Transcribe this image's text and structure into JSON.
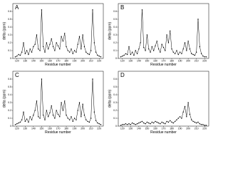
{
  "chart_data": [
    {
      "type": "line",
      "title": "A",
      "xlabel": "Residue number",
      "ylabel": "delta (ppm)",
      "color": "#000000",
      "x": [
        118,
        120,
        122,
        124,
        126,
        128,
        130,
        132,
        134,
        136,
        138,
        140,
        142,
        144,
        146,
        148,
        150,
        152,
        154,
        156,
        158,
        160,
        162,
        164,
        166,
        168,
        170,
        172,
        174,
        176,
        178,
        180,
        182,
        184,
        186,
        188,
        190,
        192,
        194,
        196,
        198,
        200,
        202,
        204,
        206,
        208,
        210,
        212,
        214,
        216,
        218,
        220,
        222
      ],
      "values": [
        0.02,
        0.03,
        0.05,
        0.04,
        0.08,
        0.2,
        0.06,
        0.1,
        0.05,
        0.12,
        0.08,
        0.15,
        0.18,
        0.3,
        0.12,
        0.1,
        0.62,
        0.15,
        0.08,
        0.2,
        0.12,
        0.18,
        0.25,
        0.15,
        0.1,
        0.2,
        0.16,
        0.12,
        0.28,
        0.22,
        0.32,
        0.15,
        0.1,
        0.08,
        0.12,
        0.06,
        0.1,
        0.08,
        0.18,
        0.28,
        0.12,
        0.3,
        0.15,
        0.08,
        0.06,
        0.05,
        0.1,
        0.62,
        0.2,
        0.08,
        0.04,
        0.03,
        0.02
      ],
      "xlim": [
        115,
        225
      ],
      "xticks": [
        120,
        130,
        140,
        150,
        160,
        170,
        180,
        190,
        200,
        210,
        220
      ],
      "ylim": [
        0,
        0.7
      ],
      "yticks": [
        0,
        0.1,
        0.2,
        0.3,
        0.4,
        0.5,
        0.6
      ]
    },
    {
      "type": "line",
      "title": "B",
      "xlabel": "Residue number",
      "ylabel": "delta (ppm)",
      "color": "#000000",
      "x": [
        118,
        120,
        122,
        124,
        126,
        128,
        130,
        132,
        134,
        136,
        138,
        140,
        142,
        144,
        146,
        148,
        150,
        152,
        154,
        156,
        158,
        160,
        162,
        164,
        166,
        168,
        170,
        172,
        174,
        176,
        178,
        180,
        182,
        184,
        186,
        188,
        190,
        192,
        194,
        196,
        198,
        200,
        202,
        204,
        206,
        208,
        210,
        212,
        214,
        216,
        218,
        220,
        222
      ],
      "values": [
        0.02,
        0.03,
        0.04,
        0.06,
        0.05,
        0.15,
        0.05,
        0.08,
        0.04,
        0.1,
        0.06,
        0.12,
        0.2,
        0.62,
        0.14,
        0.1,
        0.3,
        0.12,
        0.08,
        0.15,
        0.1,
        0.16,
        0.22,
        0.12,
        0.08,
        0.18,
        0.14,
        0.1,
        0.3,
        0.2,
        0.35,
        0.12,
        0.08,
        0.06,
        0.1,
        0.05,
        0.08,
        0.06,
        0.12,
        0.2,
        0.1,
        0.22,
        0.12,
        0.06,
        0.05,
        0.04,
        0.08,
        0.5,
        0.15,
        0.06,
        0.03,
        0.02,
        0.02
      ],
      "xlim": [
        115,
        225
      ],
      "xticks": [
        120,
        130,
        140,
        150,
        160,
        170,
        180,
        190,
        200,
        210,
        220
      ],
      "ylim": [
        0,
        0.7
      ],
      "yticks": [
        0,
        0.1,
        0.2,
        0.3,
        0.4,
        0.5,
        0.6
      ]
    },
    {
      "type": "line",
      "title": "C",
      "xlabel": "Residue number",
      "ylabel": "delta (ppm)",
      "color": "#000000",
      "x": [
        118,
        120,
        122,
        124,
        126,
        128,
        130,
        132,
        134,
        136,
        138,
        140,
        142,
        144,
        146,
        148,
        150,
        152,
        154,
        156,
        158,
        160,
        162,
        164,
        166,
        168,
        170,
        172,
        174,
        176,
        178,
        180,
        182,
        184,
        186,
        188,
        190,
        192,
        194,
        196,
        198,
        200,
        202,
        204,
        206,
        208,
        210,
        212,
        214,
        216,
        218,
        220,
        222
      ],
      "values": [
        0.02,
        0.03,
        0.04,
        0.05,
        0.08,
        0.18,
        0.06,
        0.09,
        0.05,
        0.12,
        0.08,
        0.14,
        0.2,
        0.32,
        0.12,
        0.1,
        0.6,
        0.14,
        0.08,
        0.2,
        0.12,
        0.17,
        0.26,
        0.14,
        0.1,
        0.2,
        0.15,
        0.12,
        0.3,
        0.2,
        0.32,
        0.14,
        0.1,
        0.08,
        0.12,
        0.06,
        0.1,
        0.08,
        0.2,
        0.3,
        0.12,
        0.28,
        0.14,
        0.08,
        0.06,
        0.05,
        0.1,
        0.6,
        0.18,
        0.07,
        0.04,
        0.03,
        0.02
      ],
      "xlim": [
        115,
        225
      ],
      "xticks": [
        120,
        130,
        140,
        150,
        160,
        170,
        180,
        190,
        200,
        210,
        220
      ],
      "ylim": [
        0,
        0.7
      ],
      "yticks": [
        0,
        0.1,
        0.2,
        0.3,
        0.4,
        0.5,
        0.6
      ]
    },
    {
      "type": "line",
      "title": "D",
      "xlabel": "Residue number",
      "ylabel": "delta (ppm)",
      "color": "#000000",
      "x": [
        118,
        120,
        122,
        124,
        126,
        128,
        130,
        132,
        134,
        136,
        138,
        140,
        142,
        144,
        146,
        148,
        150,
        152,
        154,
        156,
        158,
        160,
        162,
        164,
        166,
        168,
        170,
        172,
        174,
        176,
        178,
        180,
        182,
        184,
        186,
        188,
        190,
        192,
        194,
        196,
        198,
        200,
        202,
        204,
        206,
        208,
        210,
        212,
        214,
        216,
        218,
        220,
        222
      ],
      "values": [
        0.01,
        0.02,
        0.02,
        0.03,
        0.02,
        0.03,
        0.02,
        0.04,
        0.03,
        0.02,
        0.03,
        0.04,
        0.05,
        0.06,
        0.04,
        0.03,
        0.05,
        0.04,
        0.03,
        0.05,
        0.04,
        0.06,
        0.05,
        0.04,
        0.03,
        0.05,
        0.04,
        0.03,
        0.06,
        0.05,
        0.07,
        0.05,
        0.04,
        0.06,
        0.08,
        0.1,
        0.12,
        0.1,
        0.18,
        0.25,
        0.12,
        0.3,
        0.15,
        0.08,
        0.06,
        0.05,
        0.04,
        0.05,
        0.03,
        0.02,
        0.02,
        0.01,
        0.01
      ],
      "xlim": [
        115,
        225
      ],
      "xticks": [
        120,
        130,
        140,
        150,
        160,
        170,
        180,
        190,
        200,
        210,
        220
      ],
      "ylim": [
        0,
        0.7
      ],
      "yticks": [
        0,
        0.1,
        0.2,
        0.3,
        0.4,
        0.5,
        0.6
      ]
    }
  ]
}
